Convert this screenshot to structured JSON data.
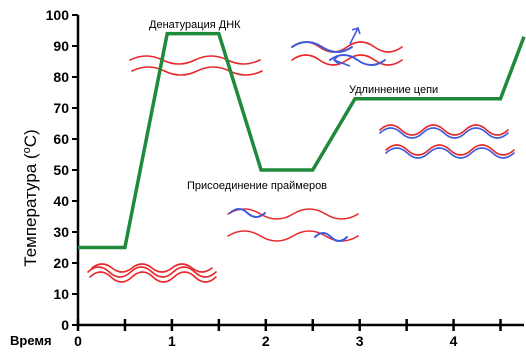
{
  "chart_data": {
    "type": "line",
    "title": "",
    "xlabel": "Время",
    "ylabel": "Температура (°C)",
    "ylabel_main": "Температура (",
    "ylabel_sup": "o",
    "ylabel_unit": "C)",
    "xlim": [
      0,
      4.75
    ],
    "ylim": [
      0,
      100
    ],
    "x_ticks": [
      0,
      1,
      2,
      3,
      4
    ],
    "x_tick_labels": [
      "0",
      "1",
      "2",
      "3",
      "4"
    ],
    "x_minor_ticks": [
      0.5,
      1.5,
      2.5,
      3.5,
      4.5
    ],
    "y_ticks": [
      0,
      10,
      20,
      30,
      40,
      50,
      60,
      70,
      80,
      90,
      100
    ],
    "y_tick_labels": [
      "0",
      "10",
      "20",
      "30",
      "40",
      "50",
      "60",
      "70",
      "80",
      "90",
      "100"
    ],
    "grid": false,
    "series": [
      {
        "x": [
          0,
          0.5,
          0.95,
          1.5,
          1.95,
          2.5,
          2.95,
          4.5,
          4.75
        ],
        "y": [
          25,
          25,
          94,
          94,
          50,
          50,
          73,
          73,
          93
        ],
        "color": "#1e8a3a"
      }
    ],
    "annotations": [
      "Денатурация ДНК",
      "Удлиннение цепи",
      "Присоединение праймеров"
    ],
    "dna_colors": {
      "template": "#e8292b",
      "primer": "#3f5bd9"
    }
  }
}
